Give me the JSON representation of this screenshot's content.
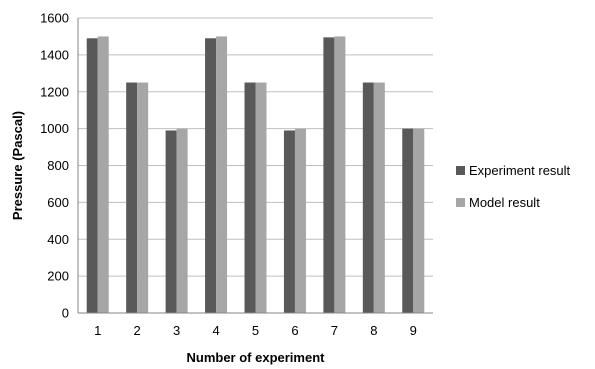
{
  "chart_data": {
    "type": "bar",
    "xlabel": "Number of experiment",
    "ylabel": "Pressure (Pascal)",
    "categories": [
      "1",
      "2",
      "3",
      "4",
      "5",
      "6",
      "7",
      "8",
      "9"
    ],
    "series": [
      {
        "name": "Experiment result",
        "color": "#595959",
        "values": [
          1490,
          1250,
          990,
          1490,
          1250,
          990,
          1495,
          1250,
          1000
        ]
      },
      {
        "name": "Model result",
        "color": "#a6a6a6",
        "values": [
          1500,
          1250,
          1000,
          1500,
          1250,
          1000,
          1500,
          1250,
          1000
        ]
      }
    ],
    "ylim": [
      0,
      1600
    ],
    "yticks": [
      "0",
      "200",
      "400",
      "600",
      "800",
      "1000",
      "1200",
      "1400",
      "1600"
    ],
    "grid": true,
    "legend_position": "right",
    "gridline_color": "#bfbfbf",
    "axis_color": "#868686"
  }
}
